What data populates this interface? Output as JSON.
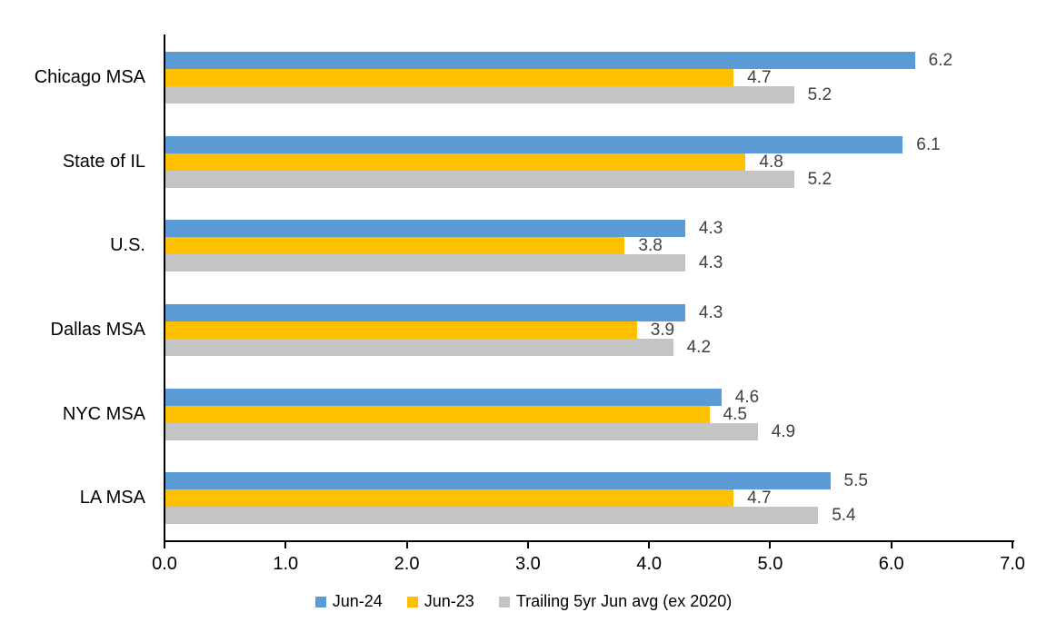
{
  "chart_data": {
    "type": "bar",
    "orientation": "horizontal",
    "title": "",
    "categories": [
      "Chicago MSA",
      "State of IL",
      "U.S.",
      "Dallas MSA",
      "NYC MSA",
      "LA MSA"
    ],
    "series": [
      {
        "name": "Jun-24",
        "color": "#5B9BD5",
        "values": [
          6.2,
          6.1,
          4.3,
          4.3,
          4.6,
          5.5
        ]
      },
      {
        "name": "Jun-23",
        "color": "#FFC000",
        "values": [
          4.7,
          4.8,
          3.8,
          3.9,
          4.5,
          4.7
        ]
      },
      {
        "name": "Trailing 5yr Jun avg (ex 2020)",
        "color": "#C4C4C4",
        "values": [
          5.2,
          5.2,
          4.3,
          4.2,
          4.9,
          5.4
        ]
      }
    ],
    "xlim": [
      0,
      7
    ],
    "x_ticks": [
      "0.0",
      "1.0",
      "2.0",
      "3.0",
      "4.0",
      "5.0",
      "6.0",
      "7.0"
    ],
    "value_labels_shown": true,
    "value_label_decimals": 1,
    "grid": false,
    "legend_position": "bottom"
  },
  "colors": {
    "background": "#FFFFFF",
    "axis": "#000000",
    "data_label": "#404040",
    "category_label": "#000000",
    "tick_label": "#000000"
  }
}
